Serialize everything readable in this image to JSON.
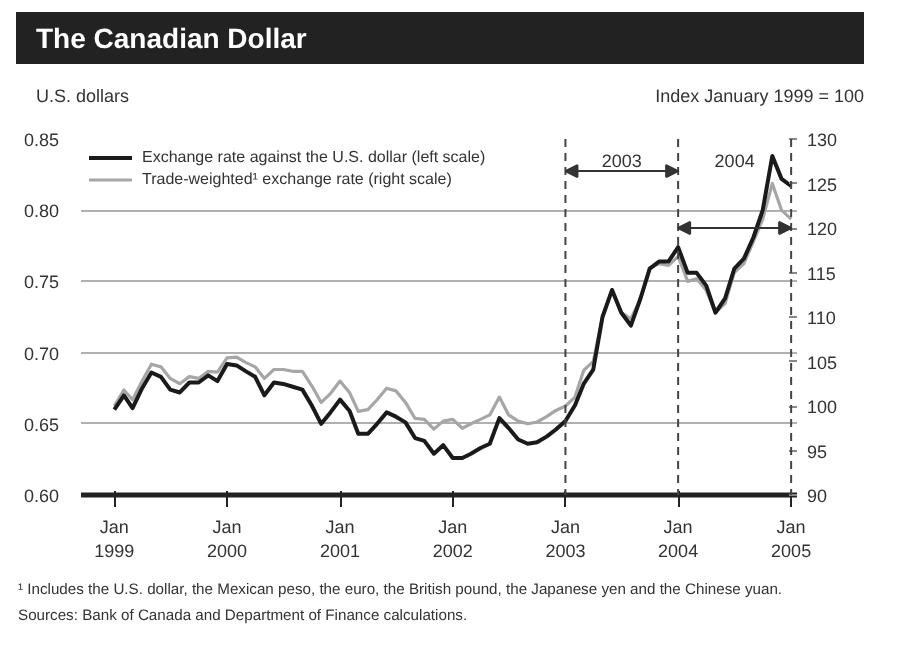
{
  "chart_data": {
    "type": "line",
    "title": "The Canadian Dollar",
    "ylabel": "U.S. dollars",
    "y2label": "Index January 1999 = 100",
    "x": [
      "1999-01",
      "1999-02",
      "1999-03",
      "1999-04",
      "1999-05",
      "1999-06",
      "1999-07",
      "1999-08",
      "1999-09",
      "1999-10",
      "1999-11",
      "1999-12",
      "2000-01",
      "2000-02",
      "2000-03",
      "2000-04",
      "2000-05",
      "2000-06",
      "2000-07",
      "2000-08",
      "2000-09",
      "2000-10",
      "2000-11",
      "2000-12",
      "2001-01",
      "2001-02",
      "2001-03",
      "2001-04",
      "2001-05",
      "2001-06",
      "2001-07",
      "2001-08",
      "2001-09",
      "2001-10",
      "2001-11",
      "2001-12",
      "2002-01",
      "2002-02",
      "2002-03",
      "2002-04",
      "2002-05",
      "2002-06",
      "2002-07",
      "2002-08",
      "2002-09",
      "2002-10",
      "2002-11",
      "2002-12",
      "2003-01",
      "2003-02",
      "2003-03",
      "2003-04",
      "2003-05",
      "2003-06",
      "2003-07",
      "2003-08",
      "2003-09",
      "2003-10",
      "2003-11",
      "2003-12",
      "2004-01",
      "2004-02",
      "2004-03",
      "2004-04",
      "2004-05",
      "2004-06",
      "2004-07",
      "2004-08",
      "2004-09",
      "2004-10",
      "2004-11",
      "2004-12",
      "2005-01"
    ],
    "series": [
      {
        "name": "Exchange rate against the U.S. dollar (left scale)",
        "color": "#1a1a1a",
        "values": [
          0.66,
          0.67,
          0.661,
          0.675,
          0.686,
          0.683,
          0.674,
          0.672,
          0.679,
          0.679,
          0.684,
          0.68,
          0.692,
          0.691,
          0.687,
          0.683,
          0.67,
          0.679,
          0.678,
          0.676,
          0.674,
          0.663,
          0.65,
          0.658,
          0.667,
          0.659,
          0.643,
          0.643,
          0.65,
          0.658,
          0.655,
          0.651,
          0.64,
          0.638,
          0.629,
          0.635,
          0.626,
          0.626,
          0.629,
          0.633,
          0.636,
          0.654,
          0.647,
          0.639,
          0.636,
          0.637,
          0.641,
          0.646,
          0.652,
          0.663,
          0.678,
          0.688,
          0.725,
          0.744,
          0.728,
          0.719,
          0.738,
          0.759,
          0.764,
          0.764,
          0.774,
          0.756,
          0.756,
          0.747,
          0.728,
          0.738,
          0.759,
          0.766,
          0.781,
          0.8,
          0.838,
          0.822,
          0.817
        ]
      },
      {
        "name": "Trade-weighted¹ exchange rate (right scale)",
        "color": "#a6a6a6",
        "axis": "y2",
        "values": [
          100,
          101.8,
          100.7,
          102.8,
          104.7,
          104.4,
          103.1,
          102.5,
          103.3,
          103.1,
          103.9,
          103.8,
          105.4,
          105.5,
          104.9,
          104.4,
          103.1,
          104.1,
          104.1,
          103.9,
          103.9,
          102.3,
          100.4,
          101.4,
          102.8,
          101.5,
          99.4,
          99.6,
          100.7,
          102,
          101.7,
          100.4,
          98.6,
          98.5,
          97.4,
          98.3,
          98.5,
          97.5,
          98,
          98.5,
          99,
          101,
          99,
          98.3,
          98,
          98.2,
          98.8,
          99.5,
          100,
          101,
          104,
          105,
          110,
          113,
          110.5,
          109.8,
          112,
          115.5,
          116,
          115.8,
          116.8,
          114,
          114.3,
          113,
          110.5,
          111.5,
          115,
          116,
          118.5,
          121,
          125,
          122,
          121
        ]
      }
    ],
    "xlim": [
      "1998-09-15",
      "2005-01-20"
    ],
    "xticks": [
      {
        "value": "1999-01",
        "label": "Jan\n1999"
      },
      {
        "value": "2000-01",
        "label": "Jan\n2000"
      },
      {
        "value": "2001-01",
        "label": "Jan\n2001"
      },
      {
        "value": "2002-01",
        "label": "Jan\n2002"
      },
      {
        "value": "2003-01",
        "label": "Jan\n2003"
      },
      {
        "value": "2004-01",
        "label": "Jan\n2004"
      },
      {
        "value": "2005-01",
        "label": "Jan\n2005"
      }
    ],
    "ylim": [
      0.6,
      0.85
    ],
    "yticks": [
      {
        "value": 0.6,
        "label": "0.60"
      },
      {
        "value": 0.65,
        "label": "0.65"
      },
      {
        "value": 0.7,
        "label": "0.70"
      },
      {
        "value": 0.75,
        "label": "0.75"
      },
      {
        "value": 0.8,
        "label": "0.80"
      },
      {
        "value": 0.85,
        "label": "0.85"
      }
    ],
    "y2lim": [
      90,
      130
    ],
    "y2ticks": [
      90,
      95,
      100,
      105,
      110,
      115,
      120,
      125,
      130
    ],
    "ref_lines": [
      {
        "axis": "x",
        "value": "2003-01",
        "line_style": "dashed"
      },
      {
        "axis": "x",
        "value": "2004-01",
        "line_style": "dashed"
      },
      {
        "axis": "x",
        "value": "2005-01",
        "line_style": "dashed"
      }
    ],
    "annotations": [
      "2003",
      "2004",
      "¹ Includes the U.S. dollar, the Mexican peso, the euro, the British pound, the Japanese yen and the Chinese yuan.",
      "Sources: Bank of Canada and Department of Finance calculations."
    ],
    "grid": "y",
    "legend": "top left",
    "marker": "none",
    "line_style": "solid"
  }
}
